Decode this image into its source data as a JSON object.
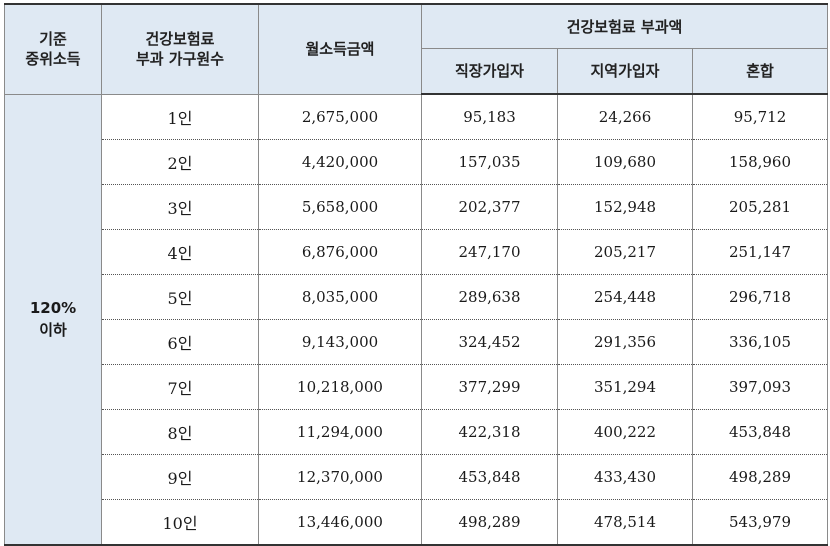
{
  "header": {
    "col1_line1": "기준",
    "col1_line2": "중위소득",
    "col2_line1": "건강보험료",
    "col2_line2": "부과 가구원수",
    "col3": "월소득금액",
    "group": "건강보험료 부과액",
    "sub1": "직장가입자",
    "sub2": "지역가입자",
    "sub3": "혼합"
  },
  "group_label_line1": "120%",
  "group_label_line2": "이하",
  "rows": [
    {
      "size": "1인",
      "income": "2,675,000",
      "employee": "95,183",
      "regional": "24,266",
      "mixed": "95,712"
    },
    {
      "size": "2인",
      "income": "4,420,000",
      "employee": "157,035",
      "regional": "109,680",
      "mixed": "158,960"
    },
    {
      "size": "3인",
      "income": "5,658,000",
      "employee": "202,377",
      "regional": "152,948",
      "mixed": "205,281"
    },
    {
      "size": "4인",
      "income": "6,876,000",
      "employee": "247,170",
      "regional": "205,217",
      "mixed": "251,147"
    },
    {
      "size": "5인",
      "income": "8,035,000",
      "employee": "289,638",
      "regional": "254,448",
      "mixed": "296,718"
    },
    {
      "size": "6인",
      "income": "9,143,000",
      "employee": "324,452",
      "regional": "291,356",
      "mixed": "336,105"
    },
    {
      "size": "7인",
      "income": "10,218,000",
      "employee": "377,299",
      "regional": "351,294",
      "mixed": "397,093"
    },
    {
      "size": "8인",
      "income": "11,294,000",
      "employee": "422,318",
      "regional": "400,222",
      "mixed": "453,848"
    },
    {
      "size": "9인",
      "income": "12,370,000",
      "employee": "453,848",
      "regional": "433,430",
      "mixed": "498,289"
    },
    {
      "size": "10인",
      "income": "13,446,000",
      "employee": "498,289",
      "regional": "478,514",
      "mixed": "543,979"
    }
  ]
}
